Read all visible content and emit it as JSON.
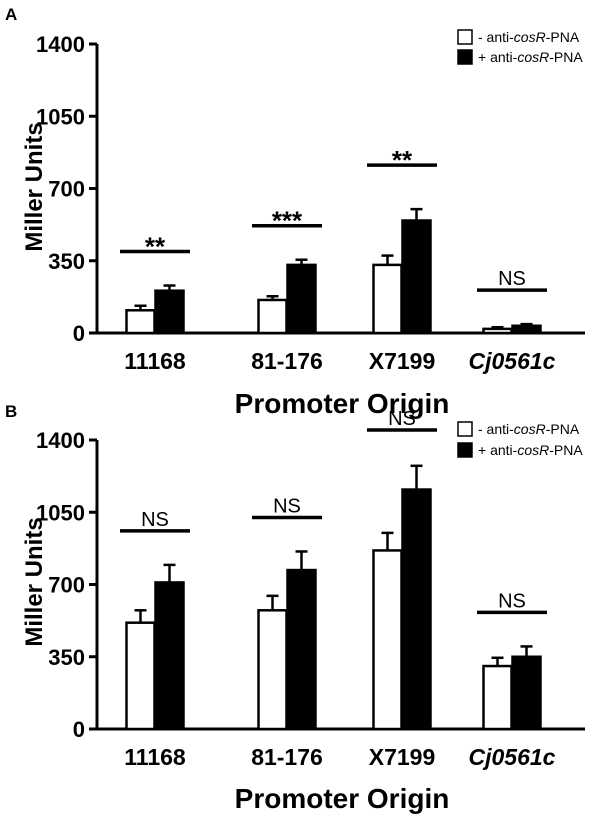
{
  "chart_data": [
    {
      "panel": "A",
      "type": "bar",
      "categories": [
        "11168",
        "81-176",
        "X7199",
        "Cj0561c"
      ],
      "categories_italic": [
        false,
        false,
        false,
        true
      ],
      "series": [
        {
          "name": "- anti-cosR-PNA",
          "name_parts": [
            "- anti-",
            "cosR",
            "-PNA"
          ],
          "fill": "#ffffff",
          "values": [
            110,
            160,
            330,
            20
          ],
          "errors": [
            22,
            18,
            45,
            8
          ]
        },
        {
          "name": "+ anti-cosR-PNA",
          "name_parts": [
            "+ anti-",
            "cosR",
            "-PNA"
          ],
          "fill": "#000000",
          "values": [
            205,
            330,
            545,
            35
          ],
          "errors": [
            25,
            25,
            55,
            8
          ]
        }
      ],
      "significance": [
        "**",
        "***",
        "**",
        "NS"
      ],
      "ylabel": "Miller Units",
      "xlabel": "Promoter Origin",
      "ylim": [
        0,
        1400
      ],
      "yticks": [
        "0",
        "350",
        "700",
        "1050",
        "1400"
      ],
      "legend_position": "top-right"
    },
    {
      "panel": "B",
      "type": "bar",
      "categories": [
        "11168",
        "81-176",
        "X7199",
        "Cj0561c"
      ],
      "categories_italic": [
        false,
        false,
        false,
        true
      ],
      "series": [
        {
          "name": "- anti-cosR-PNA",
          "name_parts": [
            "- anti-",
            "cosR",
            "-PNA"
          ],
          "fill": "#ffffff",
          "values": [
            515,
            575,
            865,
            305
          ],
          "errors": [
            60,
            70,
            85,
            40
          ]
        },
        {
          "name": "+ anti-cosR-PNA",
          "name_parts": [
            "+ anti-",
            "cosR",
            "-PNA"
          ],
          "fill": "#000000",
          "values": [
            710,
            770,
            1160,
            350
          ],
          "errors": [
            85,
            90,
            115,
            50
          ]
        }
      ],
      "significance": [
        "NS",
        "NS",
        "NS",
        "NS"
      ],
      "ylabel": "Miller Units",
      "xlabel": "Promoter Origin",
      "ylim": [
        0,
        1400
      ],
      "yticks": [
        "0",
        "350",
        "700",
        "1050",
        "1400"
      ],
      "legend_position": "top-right"
    }
  ]
}
